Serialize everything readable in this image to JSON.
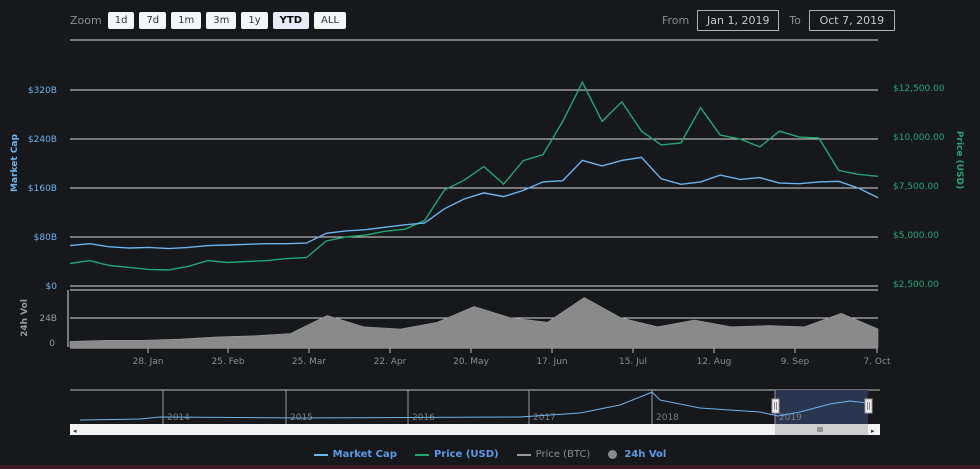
{
  "toolbar": {
    "zoom_label": "Zoom",
    "buttons": [
      "1d",
      "7d",
      "1m",
      "3m",
      "1y",
      "YTD",
      "ALL"
    ],
    "active": "YTD",
    "from_label": "From",
    "from_value": "Jan 1, 2019",
    "to_label": "To",
    "to_value": "Oct 7, 2019"
  },
  "colors": {
    "background": "#17181c",
    "market_cap": "#6ab4ef",
    "price_usd": "#1fa772",
    "price_btc": "#9a9a9a",
    "volume": "#8a8a8a",
    "grid": "#d8d8d8",
    "navigator_mask": "#2c3a55"
  },
  "legend": [
    {
      "label": "Market Cap",
      "color": "#6ab4ef",
      "text_color": "#5b9be6",
      "type": "line"
    },
    {
      "label": "Price (USD)",
      "color": "#1fa772",
      "text_color": "#5b9be6",
      "type": "line"
    },
    {
      "label": "Price (BTC)",
      "color": "#9a9a9a",
      "text_color": "#8a8c90",
      "type": "line"
    },
    {
      "label": "24h Vol",
      "color": "#8a8a8a",
      "text_color": "#5b9be6",
      "type": "dot"
    }
  ],
  "chart_data": [
    {
      "type": "line",
      "title": "",
      "xlabel": "",
      "x_ticks": [
        "28. Jan",
        "25. Feb",
        "25. Mar",
        "22. Apr",
        "20. May",
        "17. Jun",
        "15. Jul",
        "12. Aug",
        "9. Sep",
        "7. Oct"
      ],
      "left_axis": {
        "label": "Market Cap",
        "ticks": [
          "$0",
          "$80B",
          "$160B",
          "$240B",
          "$320B"
        ],
        "range": [
          0,
          320
        ]
      },
      "right_axis": {
        "label": "Price (USD)",
        "ticks": [
          "$2,500.00",
          "$5,000.00",
          "$7,500.00",
          "$10,000.00",
          "$12,500.00"
        ],
        "range": [
          2500,
          12500
        ]
      },
      "grid": true,
      "series": [
        {
          "name": "Market Cap",
          "unit": "B USD",
          "x": [
            "Jan 1",
            "Jan 8",
            "Jan 15",
            "Jan 22",
            "Jan 29",
            "Feb 5",
            "Feb 12",
            "Feb 19",
            "Feb 26",
            "Mar 5",
            "Mar 12",
            "Mar 19",
            "Mar 26",
            "Apr 2",
            "Apr 9",
            "Apr 16",
            "Apr 23",
            "Apr 30",
            "May 7",
            "May 14",
            "May 21",
            "May 28",
            "Jun 4",
            "Jun 11",
            "Jun 18",
            "Jun 25",
            "Jun 27",
            "Jul 2",
            "Jul 9",
            "Jul 16",
            "Jul 23",
            "Jul 30",
            "Aug 6",
            "Aug 13",
            "Aug 20",
            "Aug 27",
            "Sep 3",
            "Sep 10",
            "Sep 17",
            "Sep 24",
            "Oct 1",
            "Oct 7"
          ],
          "values": [
            66,
            69,
            64,
            62,
            63,
            61,
            63,
            66,
            67,
            68,
            69,
            69,
            70,
            86,
            90,
            92,
            96,
            100,
            103,
            126,
            142,
            152,
            146,
            156,
            170,
            172,
            205,
            196,
            205,
            210,
            175,
            166,
            170,
            181,
            174,
            177,
            168,
            167,
            170,
            171,
            160,
            144
          ]
        },
        {
          "name": "Price (USD)",
          "unit": "USD",
          "x": [
            "Jan 1",
            "Jan 8",
            "Jan 15",
            "Jan 22",
            "Jan 29",
            "Feb 5",
            "Feb 12",
            "Feb 19",
            "Feb 26",
            "Mar 5",
            "Mar 12",
            "Mar 19",
            "Mar 26",
            "Apr 2",
            "Apr 9",
            "Apr 16",
            "Apr 23",
            "Apr 30",
            "May 7",
            "May 14",
            "May 21",
            "May 28",
            "Jun 4",
            "Jun 11",
            "Jun 18",
            "Jun 25",
            "Jun 27",
            "Jul 2",
            "Jul 9",
            "Jul 16",
            "Jul 23",
            "Jul 30",
            "Aug 6",
            "Aug 13",
            "Aug 20",
            "Aug 27",
            "Sep 3",
            "Sep 10",
            "Sep 17",
            "Sep 24",
            "Oct 1",
            "Oct 7"
          ],
          "values": [
            3750,
            3900,
            3650,
            3550,
            3450,
            3420,
            3600,
            3900,
            3800,
            3850,
            3900,
            4000,
            4050,
            4900,
            5100,
            5200,
            5400,
            5500,
            5950,
            7500,
            8000,
            8700,
            7800,
            9000,
            9300,
            11000,
            13000,
            11000,
            12000,
            10500,
            9800,
            9900,
            11700,
            10300,
            10100,
            9700,
            10500,
            10200,
            10150,
            8500,
            8300,
            8200
          ]
        },
        {
          "name": "24h Vol",
          "unit": "B USD",
          "x": [
            "Jan 1",
            "Jan 15",
            "Jan 29",
            "Feb 12",
            "Feb 26",
            "Mar 12",
            "Mar 26",
            "Apr 3",
            "Apr 16",
            "Apr 30",
            "May 14",
            "May 21",
            "Jun 4",
            "Jun 18",
            "Jun 27",
            "Jul 9",
            "Jul 23",
            "Aug 6",
            "Aug 20",
            "Sep 3",
            "Sep 17",
            "Sep 25",
            "Oct 7"
          ],
          "values": [
            5,
            6,
            6,
            7,
            9,
            10,
            12,
            28,
            18,
            16,
            22,
            36,
            26,
            22,
            44,
            26,
            18,
            24,
            18,
            19,
            18,
            30,
            16
          ]
        }
      ],
      "volume_axis": {
        "label": "24h Vol",
        "ticks": [
          "0",
          "24B"
        ]
      }
    },
    {
      "type": "area",
      "title": "navigator",
      "x_ticks": [
        "2014",
        "2015",
        "2016",
        "2017",
        "2018",
        "2019"
      ],
      "selected_range": [
        "Jan 1, 2019",
        "Oct 7, 2019"
      ]
    }
  ]
}
